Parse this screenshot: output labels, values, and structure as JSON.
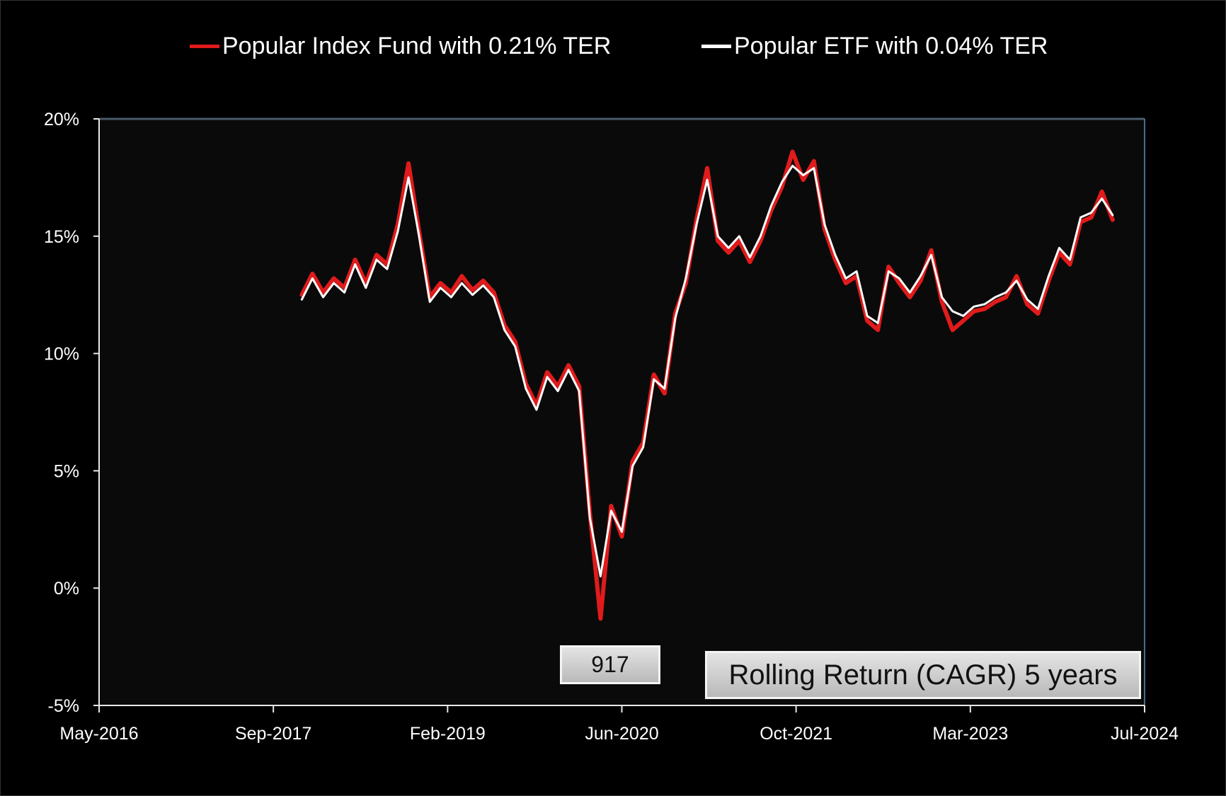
{
  "legend": [
    {
      "label": "Popular Index Fund with 0.21% TER",
      "color": "#e01b1b"
    },
    {
      "label": "Popular ETF with 0.04% TER",
      "color": "#ffffff"
    }
  ],
  "annotations": {
    "counter": "917",
    "caption": "Rolling Return (CAGR) 5 years"
  },
  "chart_data": {
    "type": "line",
    "title": "",
    "xlabel": "",
    "ylabel": "",
    "x_tick_labels": [
      "May-2016",
      "Sep-2017",
      "Feb-2019",
      "Jun-2020",
      "Oct-2021",
      "Mar-2023",
      "Jul-2024"
    ],
    "y_tick_labels": [
      "20%",
      "15%",
      "10%",
      "5%",
      "0%",
      "-5%"
    ],
    "xlim": [
      "2016-05",
      "2024-07"
    ],
    "ylim": [
      -5,
      20
    ],
    "grid": false,
    "legend_position": "top",
    "background": "#0a0a0a",
    "series": [
      {
        "name": "Popular ETF with 0.04% TER",
        "color": "#ffffff",
        "points": [
          [
            "2017-12",
            12.3
          ],
          [
            "2018-01",
            13.2
          ],
          [
            "2018-02",
            12.4
          ],
          [
            "2018-03",
            13.0
          ],
          [
            "2018-04",
            12.6
          ],
          [
            "2018-05",
            13.8
          ],
          [
            "2018-06",
            12.8
          ],
          [
            "2018-07",
            14.0
          ],
          [
            "2018-08",
            13.6
          ],
          [
            "2018-09",
            15.2
          ],
          [
            "2018-10",
            17.5
          ],
          [
            "2018-11",
            15.0
          ],
          [
            "2018-12",
            12.2
          ],
          [
            "2019-01",
            12.8
          ],
          [
            "2019-02",
            12.4
          ],
          [
            "2019-03",
            13.0
          ],
          [
            "2019-04",
            12.5
          ],
          [
            "2019-05",
            12.9
          ],
          [
            "2019-06",
            12.4
          ],
          [
            "2019-07",
            11.0
          ],
          [
            "2019-08",
            10.3
          ],
          [
            "2019-09",
            8.5
          ],
          [
            "2019-10",
            7.6
          ],
          [
            "2019-11",
            9.0
          ],
          [
            "2019-12",
            8.4
          ],
          [
            "2020-01",
            9.3
          ],
          [
            "2020-02",
            8.4
          ],
          [
            "2020-03",
            3.0
          ],
          [
            "2020-04",
            0.5
          ],
          [
            "2020-05",
            3.3
          ],
          [
            "2020-06",
            2.4
          ],
          [
            "2020-07",
            5.2
          ],
          [
            "2020-08",
            6.0
          ],
          [
            "2020-09",
            8.9
          ],
          [
            "2020-10",
            8.5
          ],
          [
            "2020-11",
            11.5
          ],
          [
            "2020-12",
            13.2
          ],
          [
            "2021-01",
            15.5
          ],
          [
            "2021-02",
            17.4
          ],
          [
            "2021-03",
            15.0
          ],
          [
            "2021-04",
            14.5
          ],
          [
            "2021-05",
            15.0
          ],
          [
            "2021-06",
            14.1
          ],
          [
            "2021-07",
            15.0
          ],
          [
            "2021-08",
            16.3
          ],
          [
            "2021-09",
            17.3
          ],
          [
            "2021-10",
            18.0
          ],
          [
            "2021-11",
            17.6
          ],
          [
            "2021-12",
            17.9
          ],
          [
            "2022-01",
            15.5
          ],
          [
            "2022-02",
            14.2
          ],
          [
            "2022-03",
            13.2
          ],
          [
            "2022-04",
            13.5
          ],
          [
            "2022-05",
            11.6
          ],
          [
            "2022-06",
            11.3
          ],
          [
            "2022-07",
            13.5
          ],
          [
            "2022-08",
            13.2
          ],
          [
            "2022-09",
            12.6
          ],
          [
            "2022-10",
            13.3
          ],
          [
            "2022-11",
            14.2
          ],
          [
            "2022-12",
            12.4
          ],
          [
            "2023-01",
            11.8
          ],
          [
            "2023-02",
            11.6
          ],
          [
            "2023-03",
            12.0
          ],
          [
            "2023-04",
            12.1
          ],
          [
            "2023-05",
            12.4
          ],
          [
            "2023-06",
            12.6
          ],
          [
            "2023-07",
            13.1
          ],
          [
            "2023-08",
            12.3
          ],
          [
            "2023-09",
            11.9
          ],
          [
            "2023-10",
            13.3
          ],
          [
            "2023-11",
            14.5
          ],
          [
            "2023-12",
            14.0
          ],
          [
            "2024-01",
            15.8
          ],
          [
            "2024-02",
            16.0
          ],
          [
            "2024-03",
            16.6
          ],
          [
            "2024-04",
            15.9
          ]
        ]
      },
      {
        "name": "Popular Index Fund with 0.21% TER",
        "color": "#e01b1b",
        "points": [
          [
            "2017-12",
            12.5
          ],
          [
            "2018-01",
            13.4
          ],
          [
            "2018-02",
            12.6
          ],
          [
            "2018-03",
            13.2
          ],
          [
            "2018-04",
            12.8
          ],
          [
            "2018-05",
            14.0
          ],
          [
            "2018-06",
            13.0
          ],
          [
            "2018-07",
            14.2
          ],
          [
            "2018-08",
            13.8
          ],
          [
            "2018-09",
            15.5
          ],
          [
            "2018-10",
            18.1
          ],
          [
            "2018-11",
            15.2
          ],
          [
            "2018-12",
            12.4
          ],
          [
            "2019-01",
            13.0
          ],
          [
            "2019-02",
            12.6
          ],
          [
            "2019-03",
            13.3
          ],
          [
            "2019-04",
            12.7
          ],
          [
            "2019-05",
            13.1
          ],
          [
            "2019-06",
            12.6
          ],
          [
            "2019-07",
            11.2
          ],
          [
            "2019-08",
            10.5
          ],
          [
            "2019-09",
            8.7
          ],
          [
            "2019-10",
            7.8
          ],
          [
            "2019-11",
            9.2
          ],
          [
            "2019-12",
            8.6
          ],
          [
            "2020-01",
            9.5
          ],
          [
            "2020-02",
            8.6
          ],
          [
            "2020-03",
            3.2
          ],
          [
            "2020-04",
            -1.3
          ],
          [
            "2020-05",
            3.5
          ],
          [
            "2020-06",
            2.2
          ],
          [
            "2020-07",
            5.4
          ],
          [
            "2020-08",
            6.2
          ],
          [
            "2020-09",
            9.1
          ],
          [
            "2020-10",
            8.3
          ],
          [
            "2020-11",
            11.7
          ],
          [
            "2020-12",
            13.0
          ],
          [
            "2021-01",
            15.7
          ],
          [
            "2021-02",
            17.9
          ],
          [
            "2021-03",
            14.8
          ],
          [
            "2021-04",
            14.3
          ],
          [
            "2021-05",
            14.8
          ],
          [
            "2021-06",
            13.9
          ],
          [
            "2021-07",
            14.8
          ],
          [
            "2021-08",
            16.1
          ],
          [
            "2021-09",
            17.1
          ],
          [
            "2021-10",
            18.6
          ],
          [
            "2021-11",
            17.4
          ],
          [
            "2021-12",
            18.2
          ],
          [
            "2022-01",
            15.3
          ],
          [
            "2022-02",
            14.0
          ],
          [
            "2022-03",
            13.0
          ],
          [
            "2022-04",
            13.3
          ],
          [
            "2022-05",
            11.4
          ],
          [
            "2022-06",
            11.0
          ],
          [
            "2022-07",
            13.7
          ],
          [
            "2022-08",
            13.0
          ],
          [
            "2022-09",
            12.4
          ],
          [
            "2022-10",
            13.1
          ],
          [
            "2022-11",
            14.4
          ],
          [
            "2022-12",
            12.2
          ],
          [
            "2023-01",
            11.0
          ],
          [
            "2023-02",
            11.4
          ],
          [
            "2023-03",
            11.8
          ],
          [
            "2023-04",
            11.9
          ],
          [
            "2023-05",
            12.2
          ],
          [
            "2023-06",
            12.4
          ],
          [
            "2023-07",
            13.3
          ],
          [
            "2023-08",
            12.1
          ],
          [
            "2023-09",
            11.7
          ],
          [
            "2023-10",
            13.1
          ],
          [
            "2023-11",
            14.3
          ],
          [
            "2023-12",
            13.8
          ],
          [
            "2024-01",
            15.6
          ],
          [
            "2024-02",
            15.8
          ],
          [
            "2024-03",
            16.9
          ],
          [
            "2024-04",
            15.7
          ]
        ]
      }
    ]
  }
}
